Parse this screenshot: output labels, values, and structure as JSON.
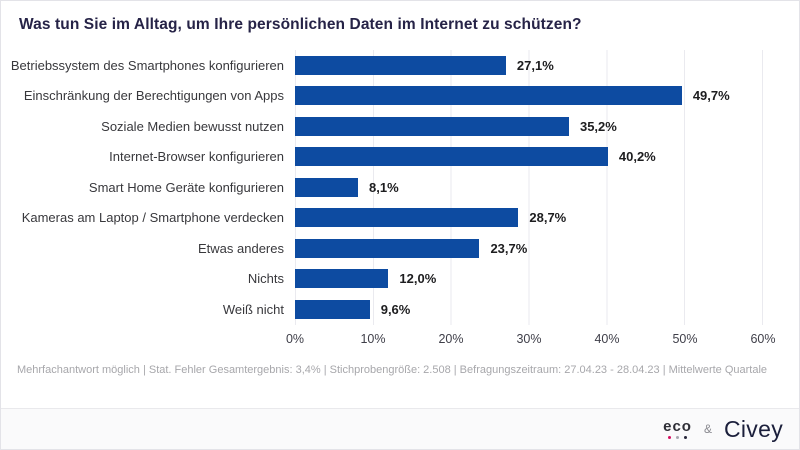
{
  "title": "Was tun Sie im Alltag, um Ihre persönlichen Daten im Internet zu schützen?",
  "chart_data": {
    "type": "bar",
    "orientation": "horizontal",
    "title": "Was tun Sie im Alltag, um Ihre persönlichen Daten im Internet zu schützen?",
    "categories": [
      "Betriebssystem des Smartphones konfigurieren",
      "Einschränkung der Berechtigungen von Apps",
      "Soziale Medien bewusst nutzen",
      "Internet-Browser konfigurieren",
      "Smart Home Geräte konfigurieren",
      "Kameras am Laptop / Smartphone verdecken",
      "Etwas anderes",
      "Nichts",
      "Weiß nicht"
    ],
    "values": [
      27.1,
      49.7,
      35.2,
      40.2,
      8.1,
      28.7,
      23.7,
      12.0,
      9.6
    ],
    "value_labels": [
      "27,1%",
      "49,7%",
      "35,2%",
      "40,2%",
      "8,1%",
      "28,7%",
      "23,7%",
      "12,0%",
      "9,6%"
    ],
    "x_ticks": [
      "0%",
      "10%",
      "20%",
      "30%",
      "40%",
      "50%",
      "60%"
    ],
    "xlim": [
      0,
      60
    ],
    "grid": true,
    "legend": "none",
    "bar_color": "#0d4ba1"
  },
  "footnote": "Mehrfachantwort möglich | Stat. Fehler Gesamtergebnis: 3,4% | Stichprobengröße: 2.508 | Befragungszeitraum: 27.04.23 - 28.04.23 | Mittelwerte Quartale",
  "branding": {
    "eco": "eco",
    "ampersand": "&",
    "civey": "Civey"
  }
}
